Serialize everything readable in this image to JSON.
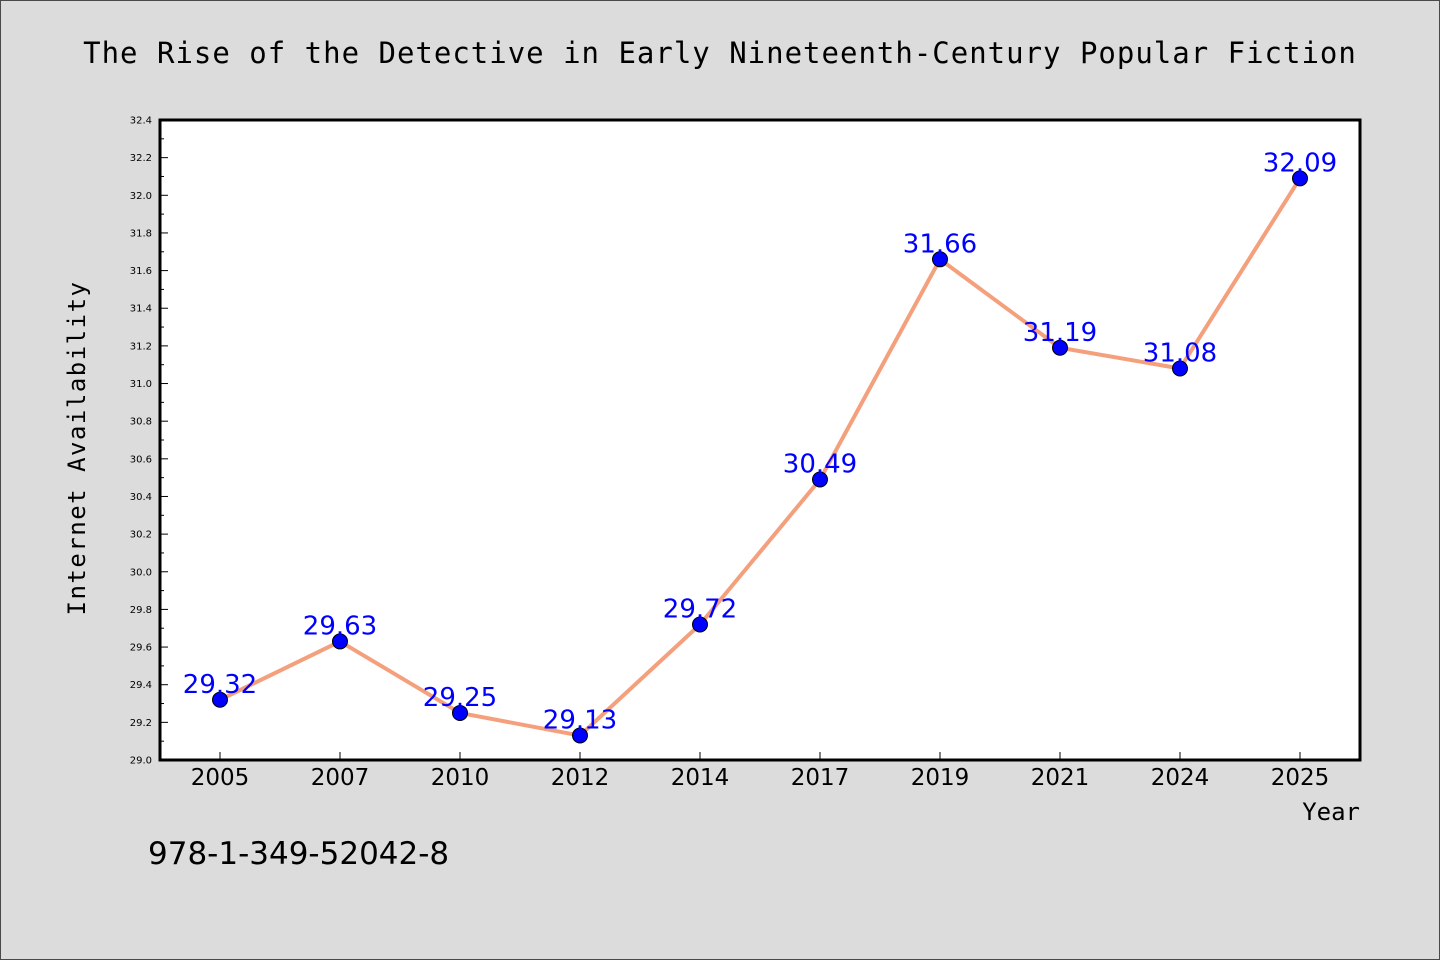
{
  "chart_data": {
    "type": "line",
    "title": "The Rise of the Detective in Early Nineteenth-Century Popular Fiction",
    "xlabel": "Year",
    "ylabel": "Internet Availability",
    "categories": [
      "2005",
      "2007",
      "2010",
      "2012",
      "2014",
      "2017",
      "2019",
      "2021",
      "2024",
      "2025"
    ],
    "series": [
      {
        "values": [
          29.32,
          29.63,
          29.25,
          29.13,
          29.72,
          30.49,
          31.66,
          31.19,
          31.08,
          32.09
        ],
        "labels": [
          "29.32",
          "29.63",
          "29.25",
          "29.13",
          "29.72",
          "30.49",
          "31.66",
          "31.19",
          "31.08",
          "32.09"
        ]
      }
    ],
    "ylim": [
      29.0,
      32.4
    ],
    "y_ticks": [
      "29.0",
      "29.2",
      "29.4",
      "29.6",
      "29.8",
      "30.0",
      "30.2",
      "30.4",
      "30.6",
      "30.8",
      "31.0",
      "31.2",
      "31.4",
      "31.6",
      "31.8",
      "32.0",
      "32.2",
      "32.4"
    ],
    "grid": false,
    "line_color": "#f4a07c",
    "marker_color": "#0000ff",
    "label_color": "#0000ff"
  },
  "annotation": {
    "isbn": "978-1-349-52042-8"
  }
}
